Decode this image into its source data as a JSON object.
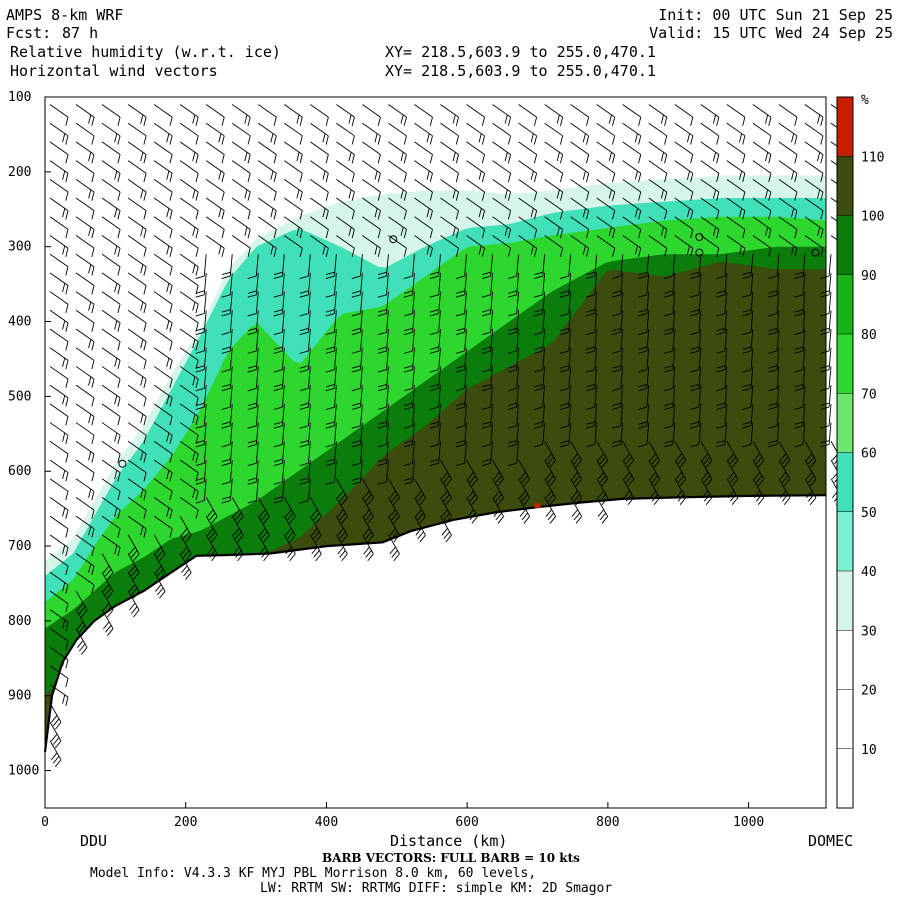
{
  "header": {
    "model": "AMPS 8-km WRF",
    "forecast_label": "Fcst:",
    "forecast_hours": "87 h",
    "init": "Init: 00 UTC Sun 21 Sep 25",
    "valid": "Valid: 15 UTC Wed 24 Sep 25",
    "field1": "Relative humidity (w.r.t. ice)",
    "field2": "Horizontal wind vectors",
    "xy1": "XY= 218.5,603.9 to 255.0,470.1",
    "xy2": "XY= 218.5,603.9 to 255.0,470.1"
  },
  "footer": {
    "barb_note": "BARB VECTORS:  FULL BARB = 10 kts",
    "model_info": "Model Info: V4.3.3   KF      MYJ PBL  Morrison           8.0 km,  60 levels,",
    "physics": "LW: RRTM SW: RRTMG   DIFF: simple KM: 2D Smagor"
  },
  "colors": {
    "c30": "#ffffff",
    "c40": "#d6f5ea",
    "c50": "#7ef0d2",
    "c60": "#40e0b8",
    "c70": "#6de66d",
    "c80": "#2ed72e",
    "c90": "#14b414",
    "c100": "#0a7d0a",
    "c110": "#3c4c0c",
    "cmax": "#c81e00",
    "terrain": "#000000"
  },
  "chart_data": {
    "type": "heatmap",
    "title": "Relative humidity (w.r.t. ice)",
    "subtitle": "Horizontal wind vectors",
    "xlabel": "Distance (km)",
    "ylabel": "",
    "x_range": [
      0,
      1110
    ],
    "y_range": [
      1050,
      100
    ],
    "x_ticks": [
      0,
      200,
      400,
      600,
      800,
      1000
    ],
    "y_ticks": [
      100,
      200,
      300,
      400,
      500,
      600,
      700,
      800,
      900,
      1000
    ],
    "x_endpoints": {
      "left": "DDU",
      "right": "DOMEC"
    },
    "colorbar": {
      "unit": "%",
      "levels": [
        10,
        20,
        30,
        40,
        50,
        60,
        70,
        80,
        90,
        100,
        110
      ],
      "colors": [
        "#ffffff",
        "#ffffff",
        "#ffffff",
        "#d6f5ea",
        "#7ef0d2",
        "#40e0b8",
        "#6de66d",
        "#2ed72e",
        "#14b414",
        "#0a7d0a",
        "#3c4c0c",
        "#c81e00"
      ]
    },
    "terrain_surface": {
      "distance_km": [
        0,
        10,
        25,
        45,
        70,
        100,
        140,
        180,
        215,
        260,
        320,
        400,
        480,
        520,
        580,
        640,
        700,
        760,
        820,
        900,
        1000,
        1110
      ],
      "level": [
        975,
        900,
        855,
        825,
        800,
        780,
        760,
        735,
        713,
        712,
        710,
        700,
        695,
        680,
        665,
        655,
        648,
        642,
        637,
        635,
        633,
        632
      ]
    },
    "moisture_layers": [
      {
        "rh": 40,
        "distance_km": [
          0,
          40,
          70,
          100,
          140,
          180,
          220,
          260,
          300,
          360,
          420,
          480,
          540,
          600,
          660,
          720,
          800,
          880,
          960,
          1040,
          1110
        ],
        "top_level": [
          720,
          690,
          640,
          590,
          540,
          470,
          410,
          330,
          290,
          260,
          240,
          230,
          225,
          225,
          230,
          225,
          215,
          210,
          205,
          205,
          205
        ]
      },
      {
        "rh": 50,
        "distance_km": [
          0,
          40,
          70,
          100,
          140,
          180,
          220,
          260,
          300,
          360,
          420,
          480,
          540,
          600,
          660,
          720,
          800,
          880,
          960,
          1040,
          1110
        ],
        "top_level": [
          740,
          710,
          660,
          610,
          560,
          490,
          420,
          345,
          300,
          275,
          300,
          330,
          300,
          275,
          270,
          255,
          245,
          240,
          235,
          235,
          235
        ]
      },
      {
        "rh": 70,
        "distance_km": [
          0,
          40,
          70,
          100,
          140,
          180,
          220,
          260,
          300,
          360,
          420,
          480,
          540,
          600,
          660,
          720,
          800,
          880,
          960,
          1040,
          1110
        ],
        "top_level": [
          775,
          745,
          700,
          660,
          625,
          580,
          520,
          440,
          400,
          460,
          390,
          380,
          340,
          300,
          295,
          285,
          275,
          265,
          260,
          260,
          265
        ]
      },
      {
        "rh": 90,
        "distance_km": [
          0,
          40,
          70,
          100,
          140,
          180,
          220,
          260,
          300,
          360,
          420,
          480,
          540,
          600,
          660,
          720,
          800,
          880,
          960,
          1040,
          1110
        ],
        "top_level": [
          810,
          785,
          760,
          735,
          715,
          690,
          680,
          660,
          640,
          600,
          560,
          520,
          480,
          440,
          400,
          360,
          320,
          310,
          310,
          300,
          300
        ]
      },
      {
        "rh": 110,
        "distance_km": [
          0,
          40,
          70,
          100,
          140,
          180,
          220,
          260,
          300,
          360,
          420,
          480,
          540,
          600,
          660,
          720,
          800,
          880,
          960,
          1040,
          1110
        ],
        "top_level": [
          900,
          860,
          820,
          790,
          770,
          760,
          740,
          725,
          715,
          690,
          640,
          580,
          540,
          490,
          460,
          430,
          330,
          340,
          320,
          330,
          330
        ]
      }
    ],
    "wind_barb_grid": {
      "distance_km": [
        0,
        37,
        74,
        111,
        148,
        185,
        222,
        259,
        296,
        333,
        370,
        407,
        444,
        481,
        518,
        555,
        592,
        629,
        666,
        703,
        740,
        777,
        814,
        851,
        888,
        925,
        962,
        999,
        1036,
        1073,
        1110
      ],
      "levels": [
        110,
        135,
        160,
        185,
        210,
        235,
        260,
        285,
        310,
        335,
        360,
        385,
        410,
        435,
        460,
        485,
        510,
        535,
        560,
        585,
        610,
        635,
        660,
        685,
        710,
        735,
        760,
        785,
        810,
        835,
        860,
        885,
        910,
        935,
        960,
        985
      ]
    }
  }
}
